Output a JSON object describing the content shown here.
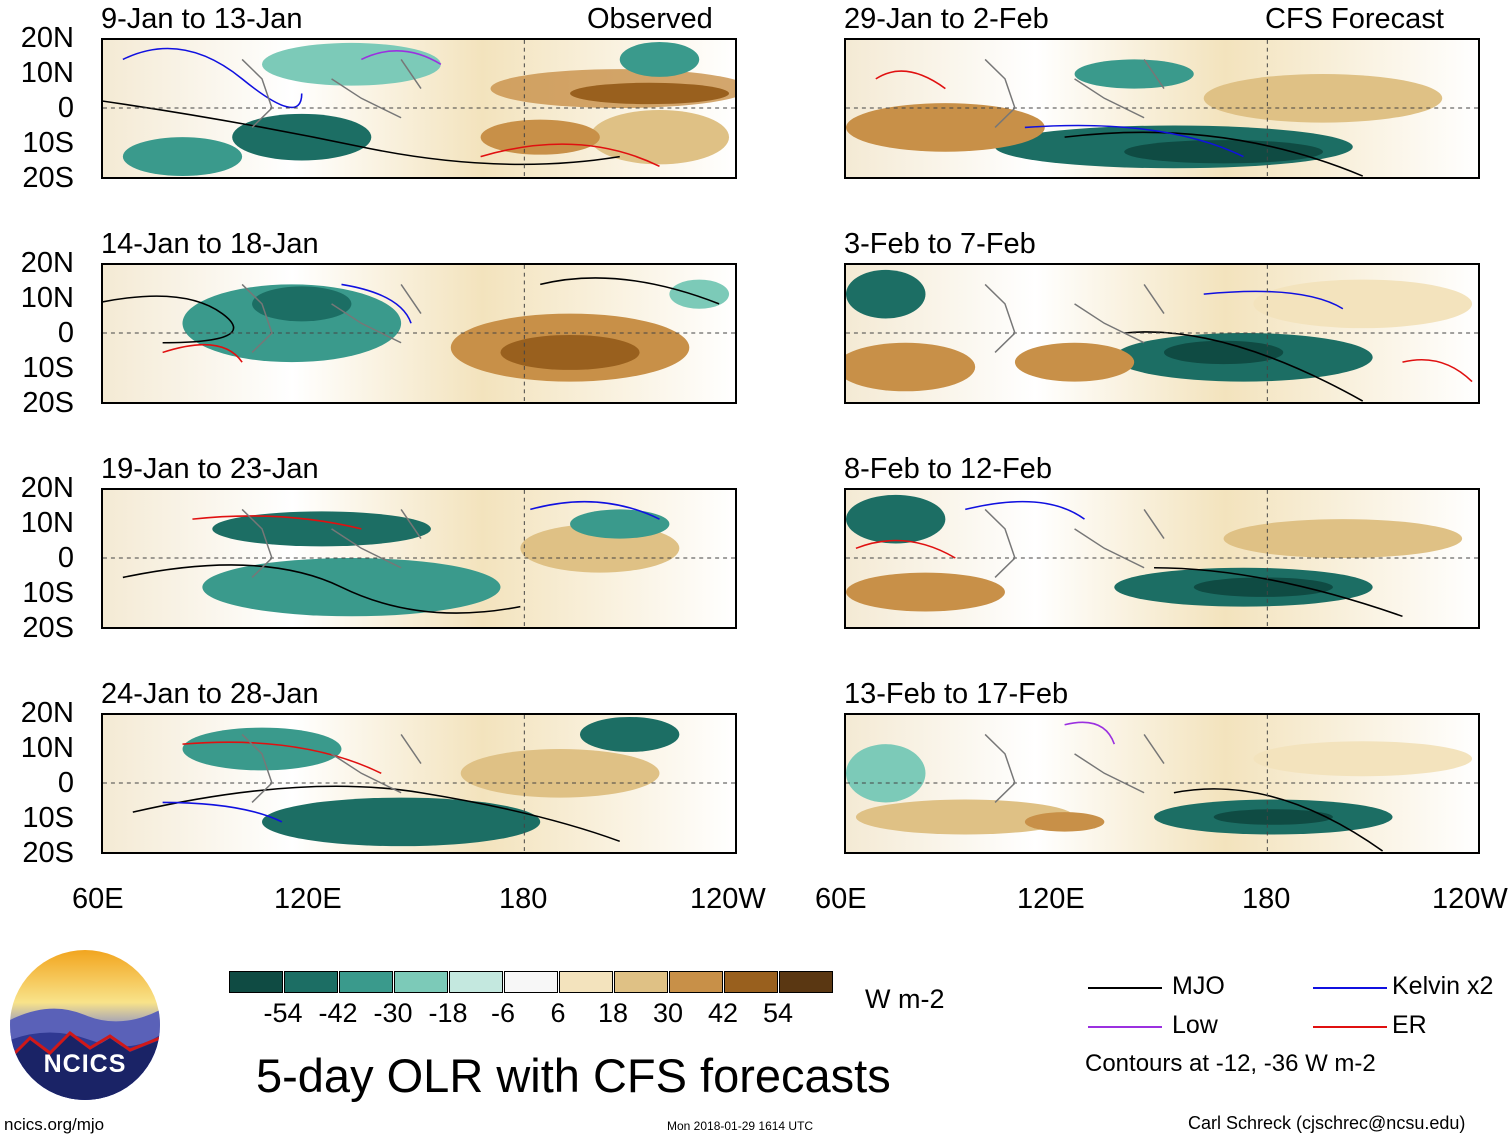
{
  "panels": {
    "observed_header": "Observed",
    "forecast_header": "CFS Forecast",
    "left": [
      "9-Jan to 13-Jan",
      "14-Jan to 18-Jan",
      "19-Jan to 23-Jan",
      "24-Jan to 28-Jan"
    ],
    "right": [
      "29-Jan to 2-Feb",
      "3-Feb to 7-Feb",
      "8-Feb to 12-Feb",
      "13-Feb to 17-Feb"
    ]
  },
  "axes": {
    "lat_ticks": [
      "20N",
      "10N",
      "0",
      "10S",
      "20S"
    ],
    "lon_ticks": [
      "60E",
      "120E",
      "180",
      "120W"
    ]
  },
  "colorbar": {
    "colors": [
      "#0f4b43",
      "#1c6e64",
      "#3a9a8c",
      "#7ccab8",
      "#c4e8df",
      "#f7f7f7",
      "#f3e3bd",
      "#dfc185",
      "#c89048",
      "#99601e",
      "#5a3712"
    ],
    "labels": [
      "-54",
      "-42",
      "-30",
      "-18",
      "-6",
      "6",
      "18",
      "30",
      "42",
      "54"
    ],
    "unit": "W m-2"
  },
  "legend": {
    "mjo": {
      "label": "MJO",
      "color": "#000000"
    },
    "kelvin": {
      "label": "Kelvin x2",
      "color": "#1010e0"
    },
    "low": {
      "label": "Low",
      "color": "#9b30e0"
    },
    "er": {
      "label": "ER",
      "color": "#e01010"
    },
    "note": "Contours at -12, -36 W m-2"
  },
  "logo": {
    "text": "NCICS"
  },
  "footer": {
    "title": "5-day OLR with CFS forecasts",
    "url": "ncics.org/mjo",
    "timestamp": "Mon 2018-01-29 1614 UTC",
    "author": "Carl Schreck (cjschrec@ncsu.edu)"
  }
}
